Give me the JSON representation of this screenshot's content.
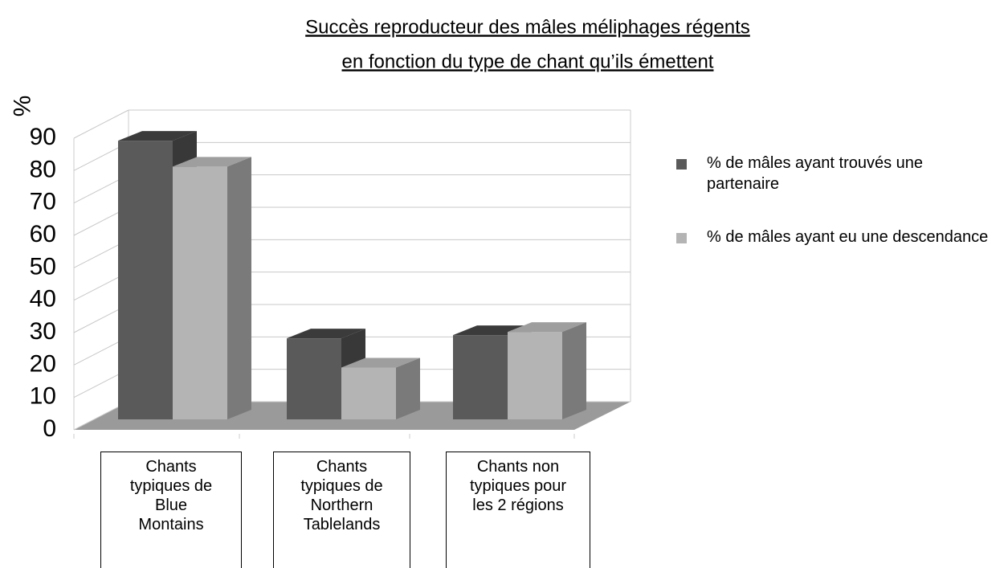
{
  "chart_data": {
    "type": "bar3d",
    "title": [
      "Succès reproducteur des mâles méliphages régents",
      "en fonction du type de chant qu’ils émettent"
    ],
    "y_label": "%",
    "categories": [
      "Chants typiques de Blue Montains",
      "Chants typiques de Northern Tablelands",
      "Chants non typiques pour les 2 régions"
    ],
    "series": [
      {
        "name": "% de mâles ayant trouvés une partenaire",
        "color": "#5a5a5a",
        "values": [
          86,
          25,
          26
        ]
      },
      {
        "name": "% de mâles ayant eu une descendance",
        "color": "#b4b4b4",
        "values": [
          78,
          16,
          27
        ]
      }
    ],
    "ylim": [
      0,
      90
    ],
    "yticks": [
      0,
      10,
      20,
      30,
      40,
      50,
      60,
      70,
      80,
      90
    ],
    "grid": true,
    "legend": "right"
  }
}
